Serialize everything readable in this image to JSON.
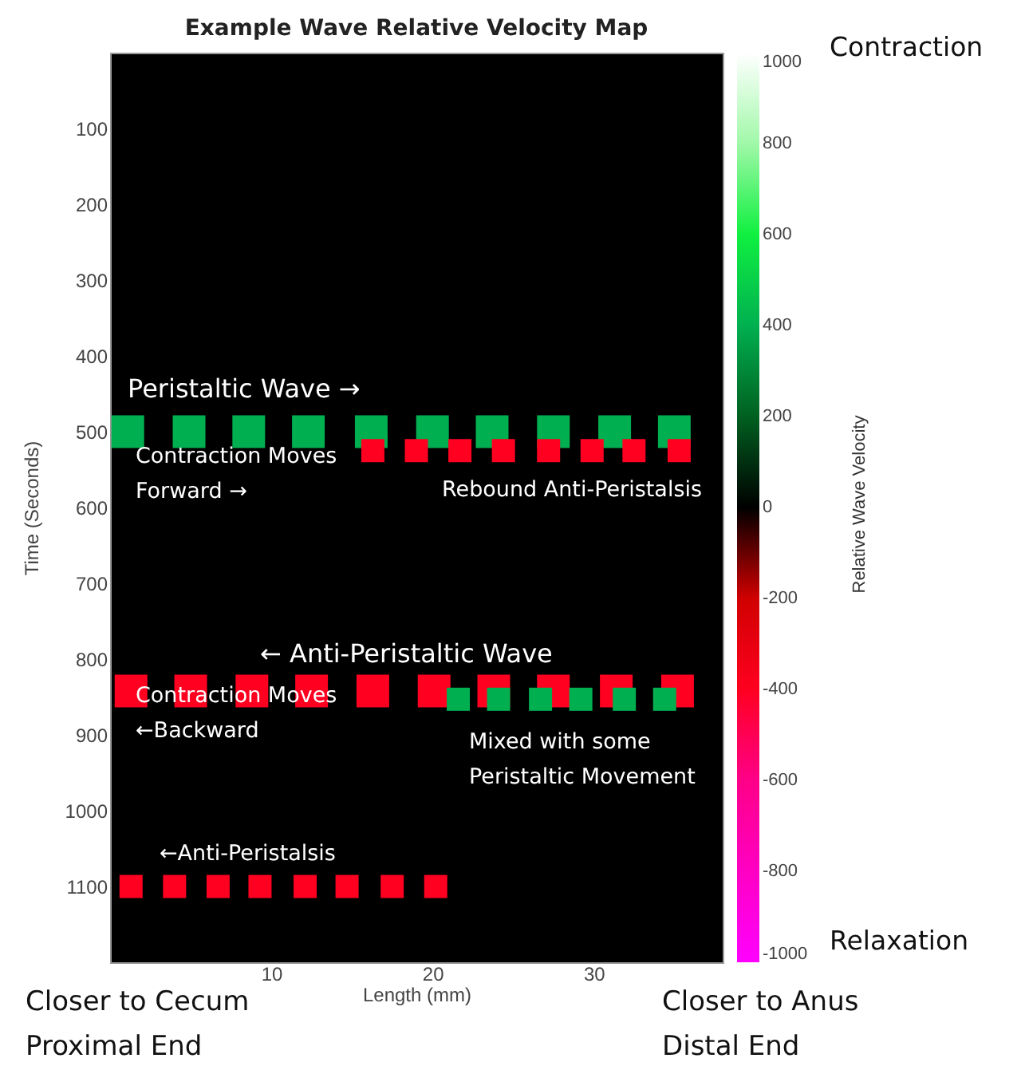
{
  "chart_data": {
    "type": "bubble",
    "title": "Example   Wave Relative Velocity Map",
    "xlabel": "Length (mm)",
    "ylabel": "Time (Seconds)",
    "clabel": "Relative Wave Velocity",
    "xlim": [
      0,
      38
    ],
    "xticks": [
      10,
      20,
      30
    ],
    "ylim": [
      1200,
      0
    ],
    "yticks": [
      100,
      200,
      300,
      400,
      500,
      600,
      700,
      800,
      900,
      1000,
      1100
    ],
    "clim": [
      -1000,
      1000
    ],
    "cticks": [
      -1000,
      -800,
      -600,
      -400,
      -200,
      0,
      200,
      400,
      600,
      800,
      1000
    ],
    "marker": "square",
    "grid": false,
    "series": [
      {
        "x": [
          1.1,
          4.9,
          8.6,
          12.3,
          16.2,
          20.0,
          23.7,
          27.5,
          31.3,
          35.0
        ],
        "values": [
          500,
          500,
          500,
          500,
          500,
          500,
          500,
          500,
          500,
          500
        ],
        "cvalues": [
          400,
          400,
          400,
          400,
          400,
          400,
          400,
          400,
          400,
          400
        ],
        "sizes": [
          1,
          1,
          1,
          1,
          1,
          1,
          1,
          1,
          1,
          1
        ]
      },
      {
        "x": [
          16.3,
          19.0,
          21.7,
          24.4,
          27.2,
          29.9,
          32.5,
          35.3
        ],
        "values": [
          525,
          525,
          525,
          525,
          525,
          525,
          525,
          525
        ],
        "cvalues": [
          -400,
          -400,
          -400,
          -400,
          -400,
          -400,
          -400,
          -400
        ],
        "sizes": [
          0.5,
          0.5,
          0.5,
          0.5,
          0.5,
          0.5,
          0.5,
          0.5
        ]
      },
      {
        "x": [
          1.3,
          5.0,
          8.8,
          12.5,
          16.3,
          20.1,
          23.8,
          27.5,
          31.4,
          35.2
        ],
        "values": [
          842,
          842,
          842,
          842,
          842,
          842,
          842,
          842,
          842,
          842
        ],
        "cvalues": [
          -400,
          -400,
          -400,
          -400,
          -400,
          -400,
          -400,
          -400,
          -400,
          -400
        ],
        "sizes": [
          1,
          1,
          1,
          1,
          1,
          1,
          1,
          1,
          1,
          1
        ]
      },
      {
        "x": [
          21.6,
          24.1,
          26.7,
          29.2,
          31.9,
          34.4
        ],
        "values": [
          853,
          853,
          853,
          853,
          853,
          853
        ],
        "cvalues": [
          400,
          400,
          400,
          400,
          400,
          400
        ],
        "sizes": [
          0.5,
          0.5,
          0.5,
          0.5,
          0.5,
          0.5
        ]
      },
      {
        "x": [
          1.3,
          4.0,
          6.7,
          9.3,
          12.1,
          14.7,
          17.5,
          20.2
        ],
        "values": [
          1100,
          1100,
          1100,
          1100,
          1100,
          1100,
          1100,
          1100
        ],
        "cvalues": [
          -400,
          -400,
          -400,
          -400,
          -400,
          -400,
          -400,
          -400
        ],
        "sizes": [
          0.5,
          0.5,
          0.5,
          0.5,
          0.5,
          0.5,
          0.5,
          0.5
        ]
      }
    ],
    "annotations": [
      "Peristaltic Wave →",
      "Contraction Moves\nForward →",
      "Rebound Anti-Peristalsis",
      "← Anti-Peristaltic Wave",
      "Contraction Moves\n←Backward",
      "Mixed with some\nPeristaltic Movement",
      "←Anti-Peristalsis",
      "Contraction",
      "Relaxation",
      "Closer to Cecum\nProximal End",
      "Closer to Anus\nDistal End"
    ]
  }
}
